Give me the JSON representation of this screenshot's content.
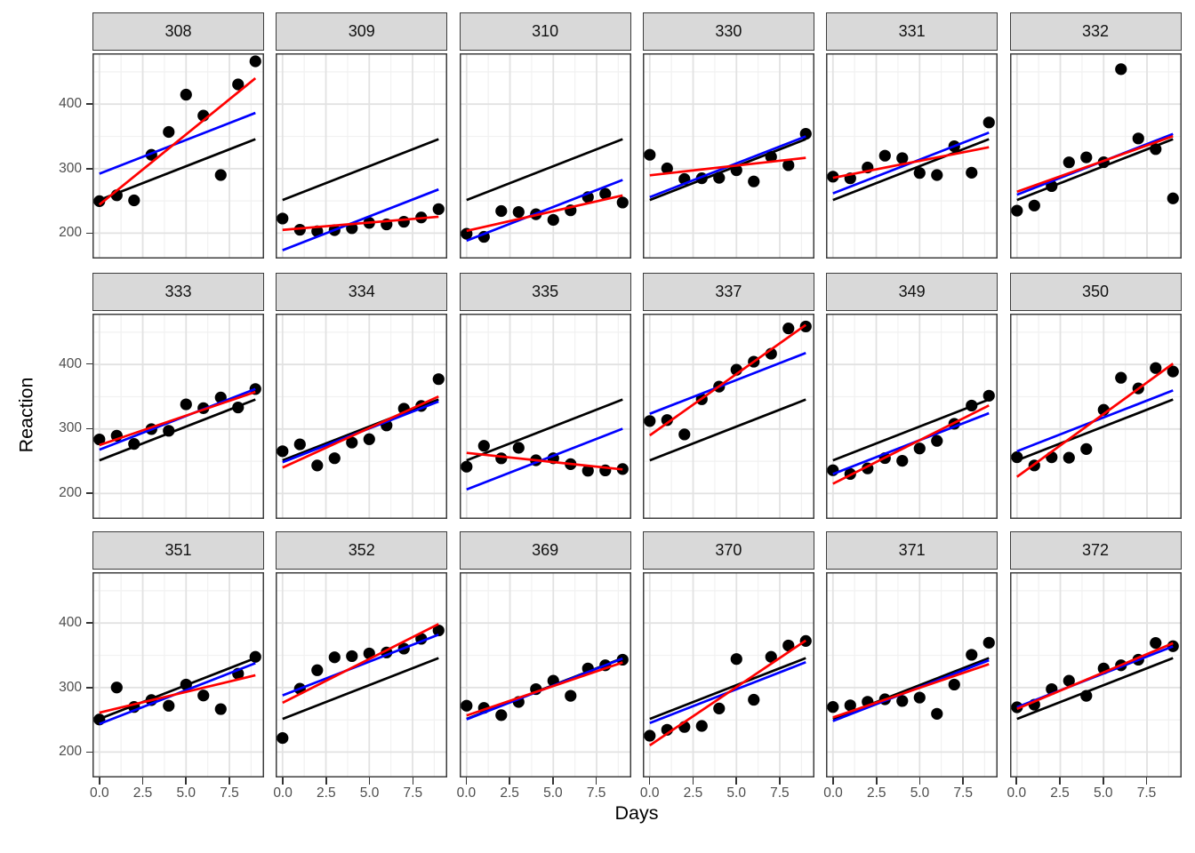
{
  "chart_data": {
    "type": "scatter",
    "subtype": "faceted-scatter-with-fitted-lines",
    "title": "",
    "xlabel": "Days",
    "ylabel": "Reaction",
    "facet_variable": "Subject",
    "grid": true,
    "legend": "none",
    "x": [
      0,
      1,
      2,
      3,
      4,
      5,
      6,
      7,
      8,
      9
    ],
    "x_range": [
      -0.4,
      9.5
    ],
    "y_range": [
      160.6,
      478.8
    ],
    "x_ticks": [
      0,
      2.5,
      5,
      7.5
    ],
    "x_tick_labels": [
      "0.0",
      "2.5",
      "5.0",
      "7.5"
    ],
    "x_minor_ticks": [
      1.25,
      3.75,
      6.25,
      8.75
    ],
    "y_ticks": [
      200,
      300,
      400
    ],
    "y_tick_labels": [
      "200",
      "300",
      "400"
    ],
    "y_minor_ticks": [
      250,
      350,
      450
    ],
    "black_line": {
      "intercept": 251.41,
      "slope": 10.47,
      "note": "identical line in every panel"
    },
    "line_x_span": [
      0,
      9
    ],
    "facets": [
      {
        "subject": "308",
        "reaction": [
          249.6,
          258.7,
          250.8,
          321.4,
          356.9,
          414.7,
          382.2,
          290.1,
          430.6,
          466.4
        ],
        "red_line": {
          "intercept": 244.19,
          "slope": 21.77
        },
        "blue_line": {
          "intercept": 292.19,
          "slope": 10.47
        }
      },
      {
        "subject": "309",
        "reaction": [
          222.7,
          205.3,
          203.0,
          204.7,
          207.7,
          216.0,
          213.6,
          217.7,
          224.3,
          237.3
        ],
        "red_line": {
          "intercept": 205.05,
          "slope": 2.26
        },
        "blue_line": {
          "intercept": 173.56,
          "slope": 10.47
        }
      },
      {
        "subject": "310",
        "reaction": [
          199.1,
          194.3,
          234.3,
          232.8,
          229.3,
          220.5,
          235.4,
          255.8,
          261.0,
          247.5
        ],
        "red_line": {
          "intercept": 203.48,
          "slope": 6.11
        },
        "blue_line": {
          "intercept": 188.3,
          "slope": 10.47
        }
      },
      {
        "subject": "330",
        "reaction": [
          321.5,
          300.4,
          283.9,
          285.1,
          285.8,
          297.6,
          280.2,
          318.3,
          305.3,
          354.0
        ],
        "red_line": {
          "intercept": 289.69,
          "slope": 3.01
        },
        "blue_line": {
          "intercept": 255.81,
          "slope": 10.47
        }
      },
      {
        "subject": "331",
        "reaction": [
          287.6,
          285.0,
          301.8,
          320.1,
          316.3,
          293.3,
          290.1,
          334.8,
          293.7,
          371.6
        ],
        "red_line": {
          "intercept": 285.74,
          "slope": 5.27
        },
        "blue_line": {
          "intercept": 261.62,
          "slope": 10.47
        }
      },
      {
        "subject": "332",
        "reaction": [
          234.9,
          242.8,
          273.0,
          309.8,
          317.5,
          310.0,
          454.2,
          346.8,
          330.3,
          253.9
        ],
        "red_line": {
          "intercept": 264.25,
          "slope": 9.57
        },
        "blue_line": {
          "intercept": 259.63,
          "slope": 10.47
        }
      },
      {
        "subject": "333",
        "reaction": [
          283.8,
          289.6,
          276.8,
          299.8,
          297.2,
          338.2,
          332.3,
          348.8,
          333.4,
          362.0
        ],
        "red_line": {
          "intercept": 275.03,
          "slope": 9.15
        },
        "blue_line": {
          "intercept": 267.9,
          "slope": 10.47
        }
      },
      {
        "subject": "334",
        "reaction": [
          265.5,
          276.2,
          243.4,
          254.7,
          279.0,
          284.2,
          305.5,
          331.5,
          335.7,
          377.3
        ],
        "red_line": {
          "intercept": 240.18,
          "slope": 12.25
        },
        "blue_line": {
          "intercept": 248.41,
          "slope": 10.47
        }
      },
      {
        "subject": "335",
        "reaction": [
          241.6,
          273.9,
          254.5,
          270.8,
          251.5,
          254.6,
          245.5,
          235.3,
          235.8,
          237.9
        ],
        "red_line": {
          "intercept": 262.95,
          "slope": -2.85
        },
        "blue_line": {
          "intercept": 206.19,
          "slope": 10.47
        }
      },
      {
        "subject": "337",
        "reaction": [
          312.4,
          313.8,
          291.6,
          346.1,
          365.7,
          391.8,
          404.3,
          416.7,
          455.9,
          458.9
        ],
        "red_line": {
          "intercept": 290.08,
          "slope": 19.03
        },
        "blue_line": {
          "intercept": 323.58,
          "slope": 10.47
        }
      },
      {
        "subject": "349",
        "reaction": [
          236.1,
          230.3,
          238.9,
          254.9,
          250.7,
          269.8,
          281.6,
          308.1,
          336.3,
          351.6
        ],
        "red_line": {
          "intercept": 215.13,
          "slope": 13.49
        },
        "blue_line": {
          "intercept": 230.21,
          "slope": 10.47
        }
      },
      {
        "subject": "350",
        "reaction": [
          256.3,
          243.5,
          256.2,
          255.5,
          268.9,
          329.7,
          379.4,
          362.9,
          394.5,
          389.1
        ],
        "red_line": {
          "intercept": 225.83,
          "slope": 19.5
        },
        "blue_line": {
          "intercept": 265.52,
          "slope": 10.47
        }
      },
      {
        "subject": "351",
        "reaction": [
          250.5,
          300.1,
          269.9,
          280.6,
          271.8,
          304.6,
          287.7,
          266.6,
          321.5,
          347.6
        ],
        "red_line": {
          "intercept": 261.15,
          "slope": 6.43
        },
        "blue_line": {
          "intercept": 243.54,
          "slope": 10.47
        }
      },
      {
        "subject": "352",
        "reaction": [
          221.7,
          298.2,
          326.9,
          346.9,
          348.7,
          352.8,
          354.4,
          360.4,
          375.6,
          388.5
        ],
        "red_line": {
          "intercept": 276.39,
          "slope": 13.57
        },
        "blue_line": {
          "intercept": 287.78,
          "slope": 10.47
        }
      },
      {
        "subject": "369",
        "reaction": [
          271.9,
          268.4,
          257.2,
          277.7,
          297.6,
          310.6,
          287.2,
          329.6,
          334.5,
          343.2
        ],
        "red_line": {
          "intercept": 256.71,
          "slope": 9.13
        },
        "blue_line": {
          "intercept": 250.74,
          "slope": 10.47
        }
      },
      {
        "subject": "370",
        "reaction": [
          225.3,
          234.5,
          238.9,
          240.5,
          267.5,
          344.2,
          281.1,
          347.6,
          365.2,
          372.2
        ],
        "red_line": {
          "intercept": 210.43,
          "slope": 18.06
        },
        "blue_line": {
          "intercept": 245.04,
          "slope": 10.47
        }
      },
      {
        "subject": "371",
        "reaction": [
          269.9,
          272.4,
          277.9,
          281.8,
          279.2,
          284.5,
          259.3,
          304.6,
          350.8,
          369.5
        ],
        "red_line": {
          "intercept": 253.63,
          "slope": 9.19
        },
        "blue_line": {
          "intercept": 248.11,
          "slope": 10.47
        }
      },
      {
        "subject": "372",
        "reaction": [
          269.4,
          273.5,
          297.6,
          310.6,
          287.2,
          329.6,
          334.5,
          343.2,
          369.1,
          364.1
        ],
        "red_line": {
          "intercept": 267.04,
          "slope": 11.3
        },
        "blue_line": {
          "intercept": 269.52,
          "slope": 10.47
        }
      }
    ],
    "colors": {
      "point": "#000000",
      "black_line": "#000000",
      "blue_line": "#0000FF",
      "red_line": "#FF0000",
      "strip_fill": "#D9D9D9",
      "strip_border": "#3d3d3d",
      "panel_border": "#3d3d3d",
      "panel_bg": "#FFFFFF",
      "grid_major": "#E2E2E2",
      "grid_minor": "#F1F1F1",
      "tick_mark": "#333333",
      "tick_label": "#4D4D4D",
      "axis_title": "#000000",
      "strip_text": "#111111"
    }
  }
}
